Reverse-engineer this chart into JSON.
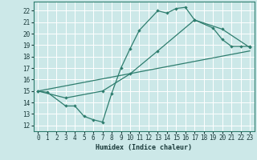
{
  "xlabel": "Humidex (Indice chaleur)",
  "bg_color": "#cce8e8",
  "grid_color": "#ffffff",
  "line_color": "#2e7d6e",
  "xlim": [
    -0.5,
    23.5
  ],
  "ylim": [
    11.5,
    22.8
  ],
  "xticks": [
    0,
    1,
    2,
    3,
    4,
    5,
    6,
    7,
    8,
    9,
    10,
    11,
    12,
    13,
    14,
    15,
    16,
    17,
    18,
    19,
    20,
    21,
    22,
    23
  ],
  "yticks": [
    12,
    13,
    14,
    15,
    16,
    17,
    18,
    19,
    20,
    21,
    22
  ],
  "line1_x": [
    0,
    1,
    3,
    4,
    5,
    6,
    7,
    8,
    9,
    10,
    11,
    13,
    14,
    15,
    16,
    17,
    19,
    20,
    21,
    22,
    23
  ],
  "line1_y": [
    15,
    14.9,
    13.7,
    13.7,
    12.8,
    12.5,
    12.3,
    14.8,
    17.0,
    18.7,
    20.3,
    22.0,
    21.8,
    22.2,
    22.3,
    21.2,
    20.5,
    19.5,
    18.9,
    18.9,
    18.9
  ],
  "line2_x": [
    0,
    3,
    7,
    10,
    13,
    17,
    20,
    23
  ],
  "line2_y": [
    15,
    14.4,
    15.0,
    16.5,
    18.5,
    21.2,
    20.4,
    18.8
  ],
  "line3_x": [
    0,
    23
  ],
  "line3_y": [
    15,
    18.5
  ],
  "tick_fontsize": 5.5,
  "xlabel_fontsize": 6,
  "linewidth": 0.9,
  "markersize": 2.2
}
